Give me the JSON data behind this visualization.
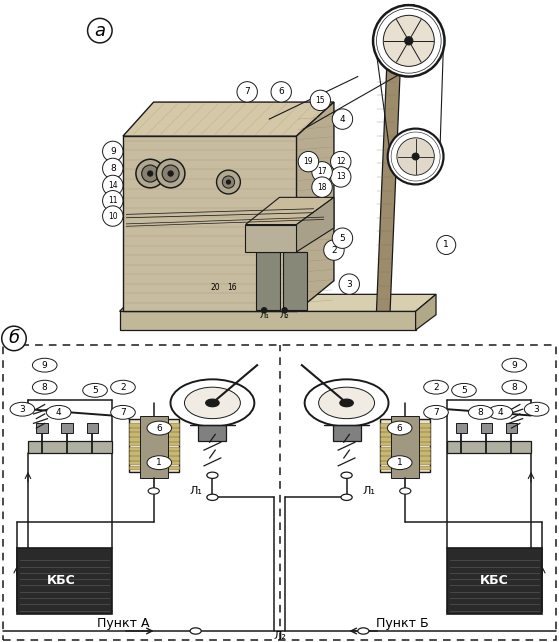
{
  "title_a": "а",
  "title_b": "б",
  "bg_color": "#ffffff",
  "line_color": "#000000",
  "label_punkt_a": "Пункт A",
  "label_punkt_b": "Пункт Б",
  "label_kbs": "КБС",
  "label_l1": "Л₁",
  "label_l2": "Л₂",
  "fig_width": 5.59,
  "fig_height": 6.42,
  "dpi": 100
}
